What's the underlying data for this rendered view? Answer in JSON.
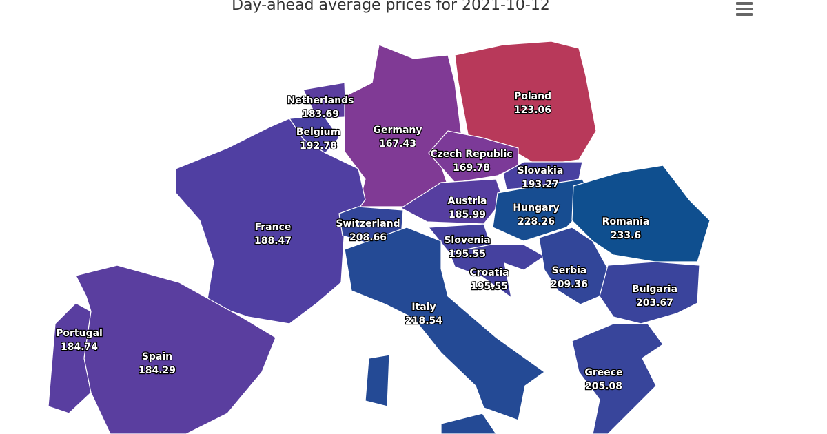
{
  "title": "Day-ahead average prices for 2021-10-12",
  "regions": [
    {
      "name": "Netherlands",
      "value": 183.69
    },
    {
      "name": "Belgium",
      "value": 192.78
    },
    {
      "name": "Germany",
      "value": 167.43
    },
    {
      "name": "Poland",
      "value": 123.06
    },
    {
      "name": "Czech Republic",
      "value": 169.78
    },
    {
      "name": "Slovakia",
      "value": 193.27
    },
    {
      "name": "France",
      "value": 188.47
    },
    {
      "name": "Austria",
      "value": 185.99
    },
    {
      "name": "Hungary",
      "value": 228.26
    },
    {
      "name": "Romania",
      "value": 233.6
    },
    {
      "name": "Switzerland",
      "value": 208.66
    },
    {
      "name": "Slovenia",
      "value": 195.55
    },
    {
      "name": "Croatia",
      "value": 195.55
    },
    {
      "name": "Serbia",
      "value": 209.36
    },
    {
      "name": "Bulgaria",
      "value": 203.67
    },
    {
      "name": "Italy",
      "value": 218.54
    },
    {
      "name": "Portugal",
      "value": 184.74
    },
    {
      "name": "Spain",
      "value": 184.29
    },
    {
      "name": "Greece",
      "value": 205.08
    }
  ]
}
